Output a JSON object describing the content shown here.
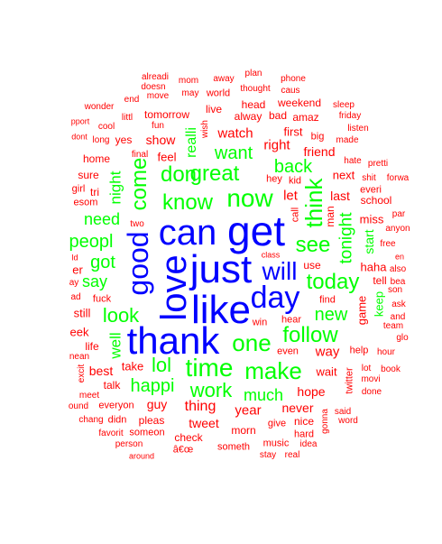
{
  "colors": {
    "blue": "#0000ff",
    "green": "#00ff00",
    "red": "#ff0000"
  },
  "words": [
    {
      "text": "alreadi",
      "color": "red"
    },
    {
      "text": "mom",
      "color": "red"
    },
    {
      "text": "away",
      "color": "red"
    },
    {
      "text": "plan",
      "color": "red"
    },
    {
      "text": "phone",
      "color": "red"
    },
    {
      "text": "doesn",
      "color": "red"
    },
    {
      "text": "may",
      "color": "red"
    },
    {
      "text": "world",
      "color": "red"
    },
    {
      "text": "thought",
      "color": "red"
    },
    {
      "text": "caus",
      "color": "red"
    },
    {
      "text": "end",
      "color": "red"
    },
    {
      "text": "move",
      "color": "red"
    },
    {
      "text": "head",
      "color": "red"
    },
    {
      "text": "weekend",
      "color": "red"
    },
    {
      "text": "wonder",
      "color": "red"
    },
    {
      "text": "fun",
      "color": "red"
    },
    {
      "text": "live",
      "color": "red"
    },
    {
      "text": "bad",
      "color": "red"
    },
    {
      "text": "sleep",
      "color": "red"
    },
    {
      "text": "pport",
      "color": "red"
    },
    {
      "text": "littl",
      "color": "red"
    },
    {
      "text": "tomorrow",
      "color": "red"
    },
    {
      "text": "alway",
      "color": "red"
    },
    {
      "text": "amaz",
      "color": "red"
    },
    {
      "text": "friday",
      "color": "red"
    },
    {
      "text": "cool",
      "color": "red"
    },
    {
      "text": "wish",
      "color": "red"
    },
    {
      "text": "first",
      "color": "red"
    },
    {
      "text": "listen",
      "color": "red"
    },
    {
      "text": "dont",
      "color": "red"
    },
    {
      "text": "long",
      "color": "red"
    },
    {
      "text": "yes",
      "color": "red"
    },
    {
      "text": "show",
      "color": "red"
    },
    {
      "text": "watch",
      "color": "red"
    },
    {
      "text": "big",
      "color": "red"
    },
    {
      "text": "made",
      "color": "red"
    },
    {
      "text": "feel",
      "color": "red"
    },
    {
      "text": "right",
      "color": "red"
    },
    {
      "text": "friend",
      "color": "red"
    },
    {
      "text": "home",
      "color": "red"
    },
    {
      "text": "final",
      "color": "red"
    },
    {
      "text": "hate",
      "color": "red"
    },
    {
      "text": "pretti",
      "color": "red"
    },
    {
      "text": "sure",
      "color": "red"
    },
    {
      "text": "next",
      "color": "red"
    },
    {
      "text": "shit",
      "color": "red"
    },
    {
      "text": "forwa",
      "color": "red"
    },
    {
      "text": "girl",
      "color": "red"
    },
    {
      "text": "tri",
      "color": "red"
    },
    {
      "text": "hey",
      "color": "red"
    },
    {
      "text": "kid",
      "color": "red"
    },
    {
      "text": "everi",
      "color": "red"
    },
    {
      "text": "esom",
      "color": "red"
    },
    {
      "text": "let",
      "color": "red"
    },
    {
      "text": "last",
      "color": "red"
    },
    {
      "text": "school",
      "color": "red"
    },
    {
      "text": "call",
      "color": "red"
    },
    {
      "text": "man",
      "color": "red"
    },
    {
      "text": "par",
      "color": "red"
    },
    {
      "text": "two",
      "color": "red"
    },
    {
      "text": "miss",
      "color": "red"
    },
    {
      "text": "anyon",
      "color": "red"
    },
    {
      "text": "free",
      "color": "red"
    },
    {
      "text": "en",
      "color": "red"
    },
    {
      "text": "ld",
      "color": "red"
    },
    {
      "text": "use",
      "color": "red"
    },
    {
      "text": "haha",
      "color": "red"
    },
    {
      "text": "also",
      "color": "red"
    },
    {
      "text": "er",
      "color": "red"
    },
    {
      "text": "tell",
      "color": "red"
    },
    {
      "text": "bea",
      "color": "red"
    },
    {
      "text": "ay",
      "color": "red"
    },
    {
      "text": "son",
      "color": "red"
    },
    {
      "text": "ad",
      "color": "red"
    },
    {
      "text": "fuck",
      "color": "red"
    },
    {
      "text": "find",
      "color": "red"
    },
    {
      "text": "ask",
      "color": "red"
    },
    {
      "text": "still",
      "color": "red"
    },
    {
      "text": "and",
      "color": "red"
    },
    {
      "text": "win",
      "color": "red"
    },
    {
      "text": "hear",
      "color": "red"
    },
    {
      "text": "game",
      "color": "red"
    },
    {
      "text": "team",
      "color": "red"
    },
    {
      "text": "eek",
      "color": "red"
    },
    {
      "text": "glo",
      "color": "red"
    },
    {
      "text": "life",
      "color": "red"
    },
    {
      "text": "even",
      "color": "red"
    },
    {
      "text": "way",
      "color": "red"
    },
    {
      "text": "help",
      "color": "red"
    },
    {
      "text": "hour",
      "color": "red"
    },
    {
      "text": "nean",
      "color": "red"
    },
    {
      "text": "take",
      "color": "red"
    },
    {
      "text": "lot",
      "color": "red"
    },
    {
      "text": "book",
      "color": "red"
    },
    {
      "text": "excit",
      "color": "red"
    },
    {
      "text": "best",
      "color": "red"
    },
    {
      "text": "wait",
      "color": "red"
    },
    {
      "text": "movi",
      "color": "red"
    },
    {
      "text": "talk",
      "color": "red"
    },
    {
      "text": "twitter",
      "color": "red"
    },
    {
      "text": "done",
      "color": "red"
    },
    {
      "text": "meet",
      "color": "red"
    },
    {
      "text": "guy",
      "color": "red"
    },
    {
      "text": "hope",
      "color": "red"
    },
    {
      "text": "ound",
      "color": "red"
    },
    {
      "text": "everyon",
      "color": "red"
    },
    {
      "text": "thing",
      "color": "red"
    },
    {
      "text": "year",
      "color": "red"
    },
    {
      "text": "never",
      "color": "red"
    },
    {
      "text": "chang",
      "color": "red"
    },
    {
      "text": "didn",
      "color": "red"
    },
    {
      "text": "pleas",
      "color": "red"
    },
    {
      "text": "said",
      "color": "red"
    },
    {
      "text": "tweet",
      "color": "red"
    },
    {
      "text": "give",
      "color": "red"
    },
    {
      "text": "nice",
      "color": "red"
    },
    {
      "text": "word",
      "color": "red"
    },
    {
      "text": "favorit",
      "color": "red"
    },
    {
      "text": "someon",
      "color": "red"
    },
    {
      "text": "morn",
      "color": "red"
    },
    {
      "text": "gonna",
      "color": "red"
    },
    {
      "text": "check",
      "color": "red"
    },
    {
      "text": "hard",
      "color": "red"
    },
    {
      "text": "person",
      "color": "red"
    },
    {
      "text": "music",
      "color": "red"
    },
    {
      "text": "idea",
      "color": "red"
    },
    {
      "text": "â€œ",
      "color": "red"
    },
    {
      "text": "someth",
      "color": "red"
    },
    {
      "text": "stay",
      "color": "red"
    },
    {
      "text": "real",
      "color": "red"
    },
    {
      "text": "around",
      "color": "red"
    },
    {
      "text": "class",
      "color": "red"
    },
    {
      "text": "realli",
      "color": "green"
    },
    {
      "text": "great",
      "color": "green"
    },
    {
      "text": "want",
      "color": "green"
    },
    {
      "text": "don",
      "color": "green"
    },
    {
      "text": "back",
      "color": "green"
    },
    {
      "text": "come",
      "color": "green"
    },
    {
      "text": "know",
      "color": "green"
    },
    {
      "text": "think",
      "color": "green"
    },
    {
      "text": "now",
      "color": "green"
    },
    {
      "text": "night",
      "color": "green"
    },
    {
      "text": "need",
      "color": "green"
    },
    {
      "text": "tonight",
      "color": "green"
    },
    {
      "text": "peopl",
      "color": "green"
    },
    {
      "text": "see",
      "color": "green"
    },
    {
      "text": "start",
      "color": "green"
    },
    {
      "text": "got",
      "color": "green"
    },
    {
      "text": "today",
      "color": "green"
    },
    {
      "text": "say",
      "color": "green"
    },
    {
      "text": "keep",
      "color": "green"
    },
    {
      "text": "look",
      "color": "green"
    },
    {
      "text": "new",
      "color": "green"
    },
    {
      "text": "follow",
      "color": "green"
    },
    {
      "text": "well",
      "color": "green"
    },
    {
      "text": "one",
      "color": "green"
    },
    {
      "text": "lol",
      "color": "green"
    },
    {
      "text": "time",
      "color": "green"
    },
    {
      "text": "make",
      "color": "green"
    },
    {
      "text": "happi",
      "color": "green"
    },
    {
      "text": "work",
      "color": "green"
    },
    {
      "text": "much",
      "color": "green"
    },
    {
      "text": "can",
      "color": "blue"
    },
    {
      "text": "get",
      "color": "blue"
    },
    {
      "text": "good",
      "color": "blue"
    },
    {
      "text": "just",
      "color": "blue"
    },
    {
      "text": "will",
      "color": "blue"
    },
    {
      "text": "love",
      "color": "blue"
    },
    {
      "text": "like",
      "color": "blue"
    },
    {
      "text": "day",
      "color": "blue"
    },
    {
      "text": "thank",
      "color": "blue"
    }
  ]
}
